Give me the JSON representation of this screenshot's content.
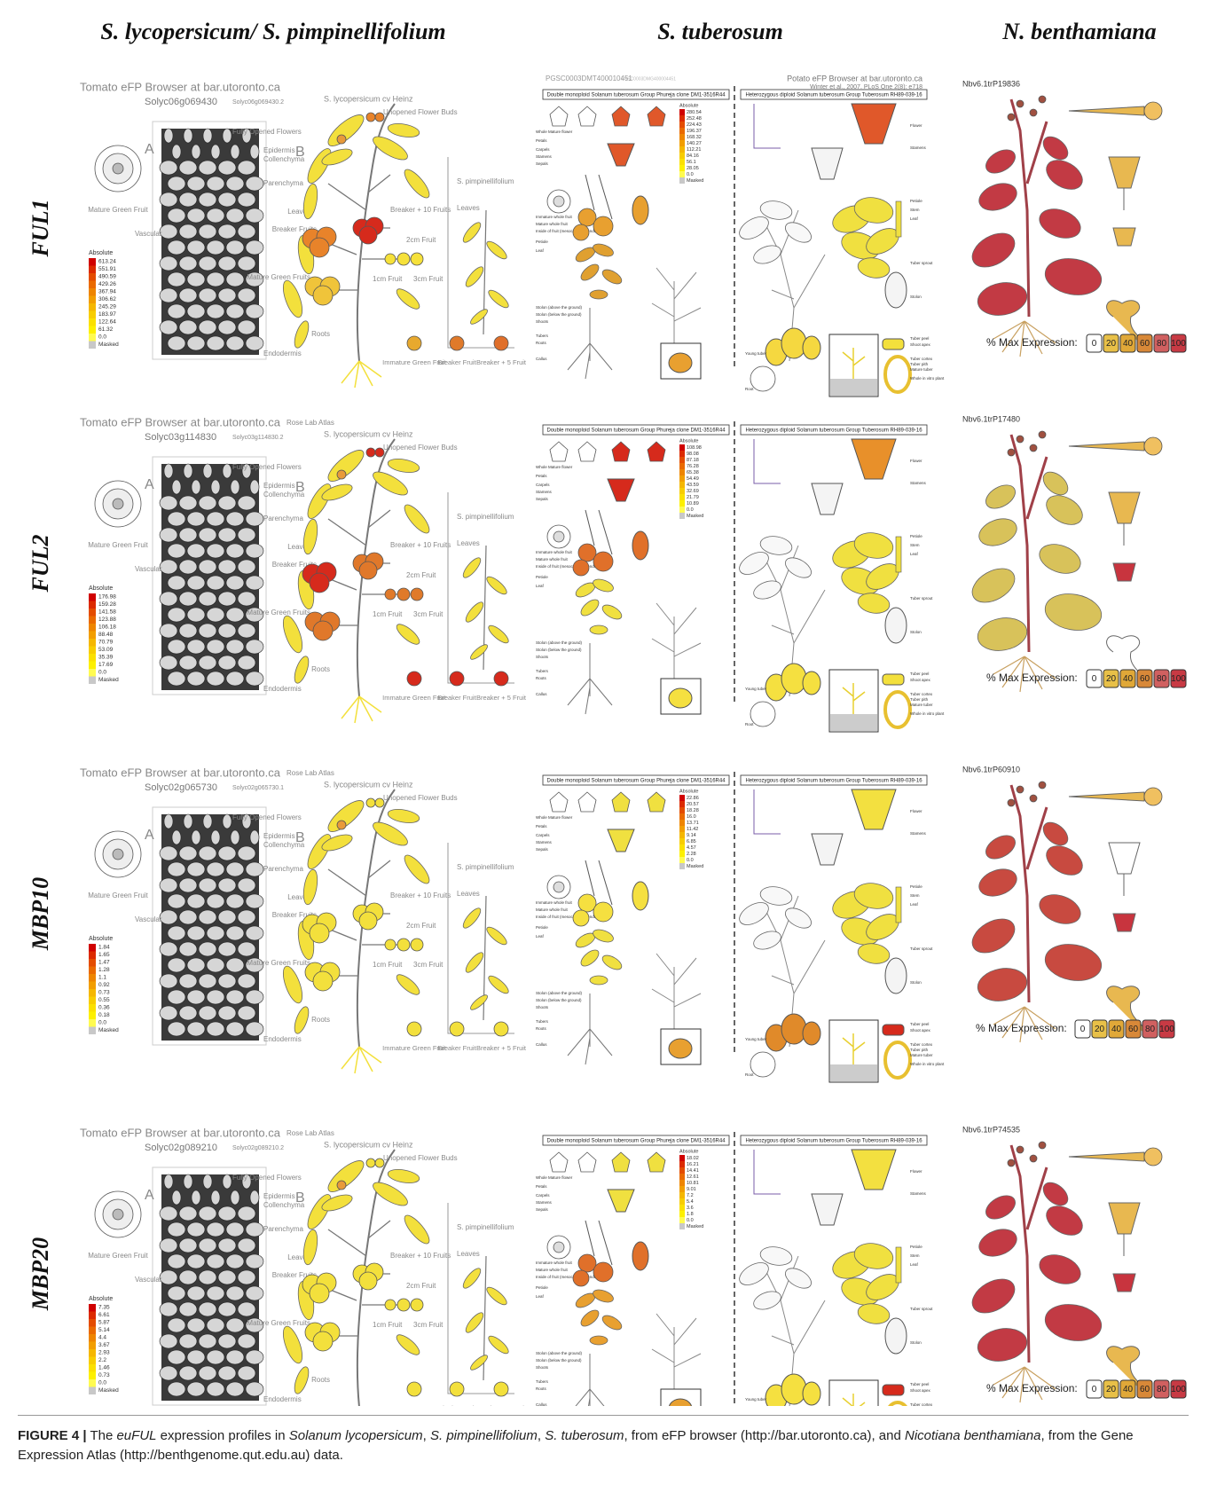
{
  "columns": [
    "S. lycopersicum/ S. pimpinellifolium",
    "S. tuberosum",
    "N. benthamiana"
  ],
  "tomato_labels": {
    "cultivar": "S. lycopersicum cv Heinz",
    "buds": "Unopened Flower Buds",
    "flowers": "Fully Opened Flowers",
    "panel_a": "A",
    "panel_b": "B",
    "epidermis": "Epidermis",
    "collenchyma": "Collenchyma",
    "parenchyma": "Parenchyma",
    "mature_green_fruit": "Mature Green Fruit",
    "vascular": "Vascular",
    "endodermis": "Endodermis",
    "leaves": "Leaves",
    "breaker_fruits": "Breaker Fruits",
    "breaker10": "Breaker + 10 Fruits",
    "fruit2cm": "2cm Fruit",
    "fruit1cm": "1cm Fruit",
    "fruit3cm": "3cm Fruit",
    "mature_green_fruits": "Mature Green Fruits",
    "roots": "Roots",
    "pimp": "S. pimpinellifolium",
    "pimp_leaves": "Leaves",
    "immature": "Immature Green Fruit",
    "breaker": "Breaker Fruit",
    "breaker5": "Breaker + 5 Fruit",
    "legend_title": "Absolute"
  },
  "potato_left_labels": [
    "Whole Mature flower",
    "Petals",
    "Carpels",
    "Stamens",
    "Sepals",
    "Immature whole fruit",
    "Mature whole fruit",
    "Inside of fruit (mesocarp and endocarp)",
    "Petiole",
    "Leaf",
    "Stolon (above the ground)",
    "Stolon (below the ground)",
    "Shoots",
    "Tubers",
    "Roots",
    "Callus"
  ],
  "potato_right_labels": [
    "Flower",
    "Stamens",
    "Petiole",
    "Stem",
    "Leaf",
    "Tuber sprout",
    "Stolon",
    "Tuber peel",
    "Shoot apex",
    "Tuber cortex",
    "Tuber pith",
    "Young tuber",
    "Mature tuber",
    "Root",
    "Whole in vitro plant"
  ],
  "potato_legend_title": "Absolute",
  "potato_left_title": "Double monoploid Solanum tuberosum Group Phureja clone DM1-3516R44",
  "potato_right_title": "Heterozygous diploid Solanum tuberosum Group Tuberosum RH89-039-16",
  "potato_header": "Potato eFP Browser at bar.utoronto.ca",
  "potato_citation": "Winter et al., 2007. PLoS One 2(8): e718",
  "potato_id": "PGSC0003DMT400010451",
  "potato_gene_id": "PGSC0003DMG400004451",
  "benth_scale_title": "% Max Expression:",
  "benth_scale": [
    "0",
    "20",
    "40",
    "60",
    "80",
    "100"
  ],
  "tomato_title": "Tomato eFP Browser at bar.utoronto.ca",
  "tomato_atlas": "Rose Lab Atlas",
  "rows": [
    {
      "gene": "FUL1",
      "tomato_gene": "Solyc06g069430",
      "tomato_gene_version": "Solyc06g069430.2",
      "tomato_legend": [
        "613.24",
        "551.91",
        "490.59",
        "429.26",
        "367.94",
        "306.62",
        "245.29",
        "183.97",
        "122.64",
        "61.32",
        "0.0",
        "Masked"
      ],
      "potato_legend": [
        "280.54",
        "252.48",
        "224.43",
        "196.37",
        "168.32",
        "140.27",
        "112.21",
        "84.16",
        "56.1",
        "28.05",
        "0.0",
        "Masked"
      ],
      "benth_id": "Nbv6.1trP19836"
    },
    {
      "gene": "FUL2",
      "tomato_gene": "Solyc03g114830",
      "tomato_gene_version": "Solyc03g114830.2",
      "tomato_legend": [
        "176.98",
        "159.28",
        "141.58",
        "123.88",
        "106.18",
        "88.48",
        "70.79",
        "53.09",
        "35.39",
        "17.69",
        "0.0",
        "Masked"
      ],
      "potato_legend": [
        "108.98",
        "98.08",
        "87.18",
        "76.28",
        "65.38",
        "54.49",
        "43.59",
        "32.69",
        "21.79",
        "10.89",
        "0.0",
        "Masked"
      ],
      "benth_id": "Nbv6.1trP17480"
    },
    {
      "gene": "MBP10",
      "tomato_gene": "Solyc02g065730",
      "tomato_gene_version": "Solyc02g065730.1",
      "tomato_legend": [
        "1.84",
        "1.65",
        "1.47",
        "1.28",
        "1.1",
        "0.92",
        "0.73",
        "0.55",
        "0.36",
        "0.18",
        "0.0",
        "Masked"
      ],
      "potato_legend": [
        "22.86",
        "20.57",
        "18.28",
        "16.0",
        "13.71",
        "11.42",
        "9.14",
        "6.85",
        "4.57",
        "2.28",
        "0.0",
        "Masked"
      ],
      "benth_id": "Nbv6.1trP60910"
    },
    {
      "gene": "MBP20",
      "tomato_gene": "Solyc02g089210",
      "tomato_gene_version": "Solyc02g089210.2",
      "tomato_legend": [
        "7.35",
        "6.61",
        "5.87",
        "5.14",
        "4.4",
        "3.67",
        "2.93",
        "2.2",
        "1.46",
        "0.73",
        "0.0",
        "Masked"
      ],
      "potato_legend": [
        "18.02",
        "16.21",
        "14.41",
        "12.61",
        "10.81",
        "9.01",
        "7.2",
        "5.4",
        "3.6",
        "1.8",
        "0.0",
        "Masked"
      ],
      "benth_id": "Nbv6.1trP74535"
    }
  ],
  "caption": {
    "label": "FIGURE 4 |",
    "parts": [
      "The ",
      "euFUL",
      " expression profiles in ",
      "Solanum lycopersicum",
      ", ",
      "S. pimpinellifolium",
      ", ",
      "S. tuberosum",
      ", from eFP browser (http://bar.utoronto.ca), and ",
      "Nicotiana benthamiana",
      ", from the Gene Expression Atlas (http://benthgenome.qut.edu.au) data."
    ]
  }
}
